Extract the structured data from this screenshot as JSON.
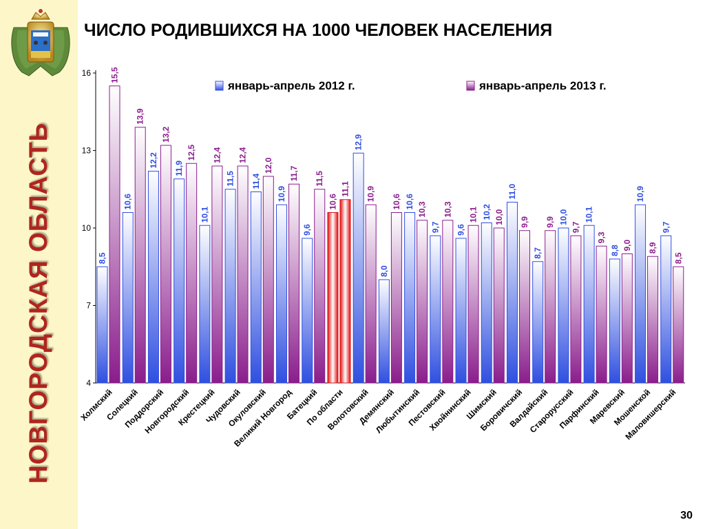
{
  "page": {
    "vertical_title": "НОВГОРОДСКАЯ ОБЛАСТЬ",
    "title": "ЧИСЛО РОДИВШИХСЯ НА 1000 ЧЕЛОВЕК НАСЕЛЕНИЯ",
    "page_number": "30",
    "emblem_icon": "novgorod-coat-of-arms-icon"
  },
  "colors": {
    "sidebar_bg": "#fdf6c8",
    "title_vertical": "#b0251e",
    "series_2012": "#2f4fe0",
    "series_2013": "#8a1d8c",
    "highlight": "#e01010"
  },
  "chart_data": {
    "type": "bar",
    "title": "ЧИСЛО РОДИВШИХСЯ НА 1000 ЧЕЛОВЕК НАСЕЛЕНИЯ",
    "xlabel": "",
    "ylabel": "",
    "ylim": [
      4,
      16
    ],
    "yticks": [
      4,
      7,
      10,
      13,
      16
    ],
    "grid": false,
    "legend_position": "top",
    "categories": [
      "Холмский",
      "Солецкий",
      "Поддорский",
      "Новгородский",
      "Крестецкий",
      "Чудовский",
      "Окуловский",
      "Великий Новгород",
      "Батецкий",
      "По области",
      "Волотовский",
      "Демянский",
      "Любытинский",
      "Пестовский",
      "Хвойнинский",
      "Шимский",
      "Боровичский",
      "Валдайский",
      "Старорусский",
      "Парфинский",
      "Маревский",
      "Мошенской",
      "Маловишерский"
    ],
    "highlight_category": "По области",
    "series": [
      {
        "name": "январь-апрель 2012 г.",
        "values": [
          8.5,
          10.6,
          12.2,
          11.9,
          10.1,
          11.5,
          11.4,
          10.9,
          9.6,
          10.6,
          12.9,
          8.0,
          10.6,
          9.7,
          9.6,
          10.2,
          11.0,
          8.7,
          10.0,
          10.1,
          8.8,
          10.9,
          9.7
        ],
        "labels": [
          "8,5",
          "10,6",
          "12,2",
          "11,9",
          "10,1",
          "11,5",
          "11,4",
          "10,9",
          "9,6",
          "10,6",
          "12,9",
          "8,0",
          "10,6",
          "9,7",
          "9,6",
          "10,2",
          "11,0",
          "8,7",
          "10,0",
          "10,1",
          "8,8",
          "10,9",
          "9,7"
        ]
      },
      {
        "name": "январь-апрель 2013 г.",
        "values": [
          15.5,
          13.9,
          13.2,
          12.5,
          12.4,
          12.4,
          12.0,
          11.7,
          11.5,
          11.1,
          10.9,
          10.6,
          10.3,
          10.3,
          10.1,
          10.0,
          9.9,
          9.9,
          9.7,
          9.3,
          9.0,
          8.9,
          8.5
        ],
        "labels": [
          "15,5",
          "13,9",
          "13,2",
          "12,5",
          "12,4",
          "12,4",
          "12,0",
          "11,7",
          "11,5",
          "11,1",
          "10,9",
          "10,6",
          "10,3",
          "10,3",
          "10,1",
          "10,0",
          "9,9",
          "9,9",
          "9,7",
          "9,3",
          "9,0",
          "8,9",
          "8,5"
        ]
      }
    ]
  }
}
